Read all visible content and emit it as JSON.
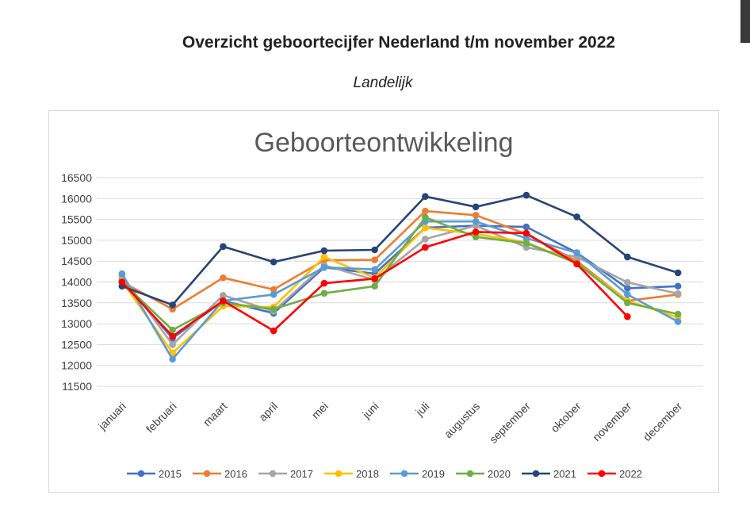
{
  "page": {
    "title": "Overzicht geboortecijfer Nederland t/m november 2022",
    "subtitle": "Landelijk"
  },
  "chart_data": {
    "type": "line",
    "title": "Geboorteontwikkeling",
    "xlabel": "",
    "ylabel": "",
    "ylim": [
      11500,
      16500
    ],
    "y_ticks": [
      11500,
      12000,
      12500,
      13000,
      13500,
      14000,
      14500,
      15000,
      15500,
      16000,
      16500
    ],
    "grid": true,
    "legend_position": "bottom",
    "categories": [
      "januari",
      "februari",
      "maart",
      "april",
      "mei",
      "juni",
      "juli",
      "augustus",
      "september",
      "oktober",
      "november",
      "december"
    ],
    "series": [
      {
        "name": "2015",
        "color": "#4472C4",
        "values": [
          14050,
          12650,
          13550,
          13250,
          14350,
          14200,
          15300,
          15350,
          15320,
          14700,
          13850,
          13900
        ]
      },
      {
        "name": "2016",
        "color": "#ED7D31",
        "values": [
          14000,
          13350,
          14100,
          13820,
          14520,
          14530,
          15700,
          15600,
          15150,
          14500,
          13550,
          13700
        ]
      },
      {
        "name": "2017",
        "color": "#A5A5A5",
        "values": [
          14150,
          12500,
          13680,
          13300,
          14400,
          14050,
          15030,
          15350,
          14830,
          14600,
          13990,
          13720
        ]
      },
      {
        "name": "2018",
        "color": "#FFC000",
        "values": [
          14020,
          12300,
          13420,
          13400,
          14600,
          14100,
          15300,
          15150,
          14950,
          14450,
          13550,
          13150
        ]
      },
      {
        "name": "2019",
        "color": "#5B9BD5",
        "values": [
          14200,
          12150,
          13550,
          13700,
          14350,
          14300,
          15450,
          15450,
          15050,
          14700,
          13700,
          13050
        ]
      },
      {
        "name": "2020",
        "color": "#70AD47",
        "values": [
          14000,
          12850,
          13500,
          13350,
          13730,
          13900,
          15550,
          15080,
          14930,
          14450,
          13500,
          13230
        ]
      },
      {
        "name": "2021",
        "color": "#264478",
        "values": [
          13900,
          13450,
          14850,
          14480,
          14750,
          14770,
          16050,
          15800,
          16080,
          15560,
          14600,
          14220
        ]
      },
      {
        "name": "2022",
        "color": "#FF0000",
        "values": [
          14000,
          12700,
          13550,
          12830,
          13970,
          14080,
          14830,
          15200,
          15170,
          14430,
          13170,
          null
        ]
      }
    ]
  }
}
